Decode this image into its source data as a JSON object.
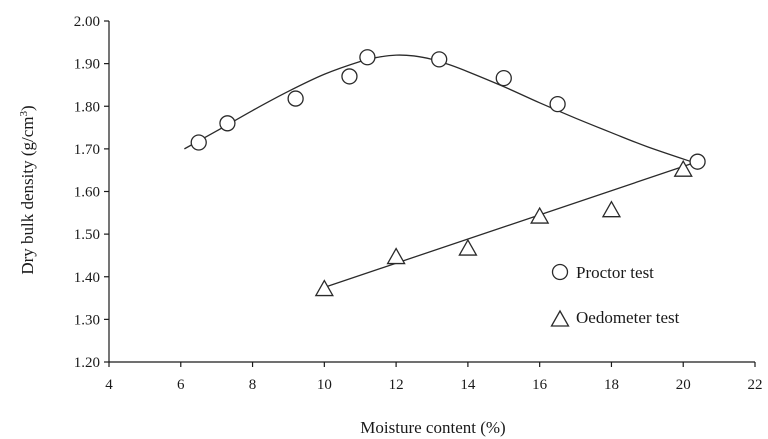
{
  "chart_data": {
    "type": "scatter",
    "title": "",
    "xlabel": "Moisture content (%)",
    "ylabel_main": "Dry bulk density (g/cm",
    "ylabel_sup": "3",
    "ylabel_close": ")",
    "xlim": [
      4,
      22
    ],
    "ylim": [
      1.2,
      2.0
    ],
    "x_ticks": [
      4,
      6,
      8,
      10,
      12,
      14,
      16,
      18,
      20,
      22
    ],
    "x_tick_labels": [
      "4",
      "6",
      "8",
      "10",
      "12",
      "14",
      "16",
      "18",
      "20",
      "22"
    ],
    "y_ticks": [
      1.2,
      1.3,
      1.4,
      1.5,
      1.6,
      1.7,
      1.8,
      1.9,
      2.0
    ],
    "y_tick_labels": [
      "1.20",
      "1.30",
      "1.40",
      "1.50",
      "1.60",
      "1.70",
      "1.80",
      "1.90",
      "2.00"
    ],
    "grid": false,
    "legend_position": "right",
    "series": [
      {
        "name": "Proctor test",
        "marker": "circle",
        "x": [
          6.5,
          7.3,
          9.2,
          10.7,
          11.2,
          13.2,
          15.0,
          16.5,
          20.4
        ],
        "y": [
          1.715,
          1.76,
          1.818,
          1.87,
          1.915,
          1.91,
          1.866,
          1.805,
          1.67
        ],
        "fit_curve": {
          "x": [
            6.1,
            7.0,
            8.0,
            9.0,
            10.0,
            11.0,
            11.5,
            12.0,
            12.5,
            13.0,
            13.5,
            14.0,
            15.0,
            16.0,
            17.0,
            18.0,
            19.0,
            20.4
          ],
          "y": [
            1.7,
            1.742,
            1.79,
            1.835,
            1.875,
            1.905,
            1.915,
            1.92,
            1.918,
            1.91,
            1.897,
            1.881,
            1.846,
            1.808,
            1.772,
            1.738,
            1.705,
            1.665
          ]
        }
      },
      {
        "name": "Oedometer test",
        "marker": "triangle",
        "x": [
          10,
          12,
          14,
          16,
          18,
          20
        ],
        "y": [
          1.37,
          1.445,
          1.465,
          1.54,
          1.555,
          1.65
        ],
        "fit_line": {
          "x": [
            10,
            20.4
          ],
          "y": [
            1.375,
            1.67
          ]
        }
      }
    ],
    "colors": {
      "axis": "#1a1a1a",
      "line": "#2a2a2a",
      "marker_stroke": "#2a2a2a",
      "marker_fill": "#ffffff"
    }
  }
}
